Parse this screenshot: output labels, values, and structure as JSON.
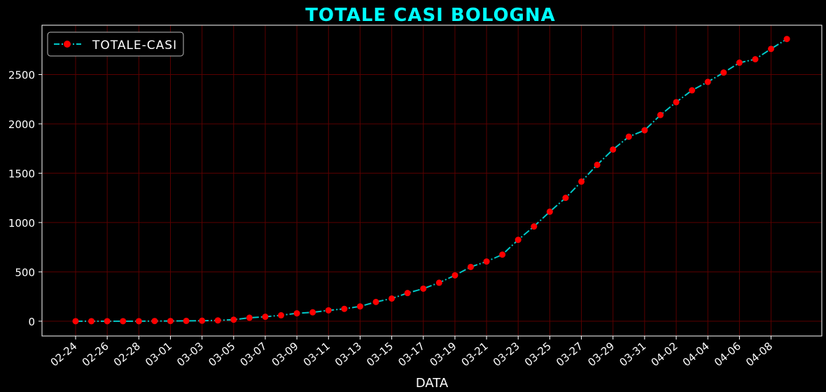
{
  "chart_data": {
    "type": "line",
    "title": "TOTALE CASI BOLOGNA",
    "xlabel": "DATA",
    "ylabel": "",
    "ylim": [
      -150,
      3000
    ],
    "yticks": [
      0,
      500,
      1000,
      1500,
      2000,
      2500
    ],
    "grid": true,
    "legend": "top-left",
    "colors": {
      "background": "#000000",
      "line": "#00c8c8",
      "marker": "#ff0000",
      "grid": "#5a0000",
      "title": "#00ffff",
      "text": "#ffffff"
    },
    "x": [
      "02-24",
      "02-25",
      "02-26",
      "02-27",
      "02-28",
      "02-29",
      "03-01",
      "03-02",
      "03-03",
      "03-04",
      "03-05",
      "03-06",
      "03-07",
      "03-08",
      "03-09",
      "03-10",
      "03-11",
      "03-12",
      "03-13",
      "03-14",
      "03-15",
      "03-16",
      "03-17",
      "03-18",
      "03-19",
      "03-20",
      "03-21",
      "03-22",
      "03-23",
      "03-24",
      "03-25",
      "03-26",
      "03-27",
      "03-28",
      "03-29",
      "03-30",
      "03-31",
      "04-01",
      "04-02",
      "04-03",
      "04-04",
      "04-05",
      "04-06",
      "04-07",
      "04-08",
      "04-09"
    ],
    "xtick_labels": [
      "02-24",
      "02-26",
      "02-28",
      "03-01",
      "03-03",
      "03-05",
      "03-07",
      "03-09",
      "03-11",
      "03-13",
      "03-15",
      "03-17",
      "03-19",
      "03-21",
      "03-23",
      "03-25",
      "03-27",
      "03-29",
      "03-31",
      "04-02",
      "04-04",
      "04-06",
      "04-08"
    ],
    "series": [
      {
        "name": "TOTALE-CASI",
        "values": [
          0,
          0,
          0,
          0,
          0,
          2,
          2,
          3,
          5,
          8,
          15,
          35,
          45,
          60,
          80,
          90,
          110,
          125,
          150,
          195,
          230,
          285,
          330,
          390,
          465,
          550,
          605,
          675,
          825,
          960,
          1110,
          1250,
          1415,
          1585,
          1740,
          1870,
          1935,
          2090,
          2220,
          2340,
          2425,
          2520,
          2620,
          2655,
          2760,
          2860
        ]
      }
    ]
  }
}
